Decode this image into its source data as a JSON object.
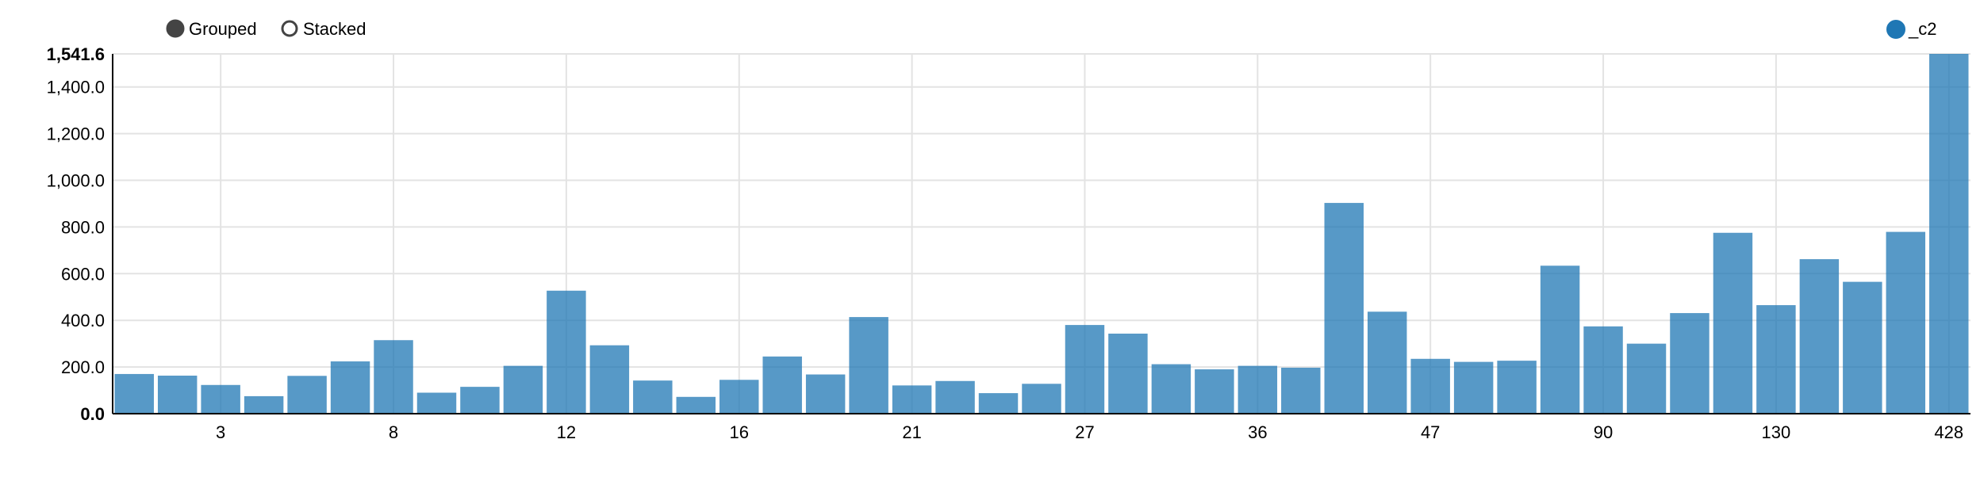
{
  "controls": {
    "grouped_label": "Grouped",
    "stacked_label": "Stacked",
    "selected": "Grouped"
  },
  "chart_data": {
    "type": "bar",
    "legend": {
      "entries": [
        "_c2"
      ],
      "position": "top-right"
    },
    "series": [
      {
        "name": "_c2",
        "color": "#1f77b4",
        "values": [
          170,
          163,
          123,
          75,
          162,
          224,
          315,
          90,
          115,
          205,
          527,
          293,
          142,
          72,
          145,
          245,
          168,
          414,
          121,
          140,
          88,
          128,
          380,
          343,
          212,
          190,
          205,
          197,
          903,
          437,
          235,
          222,
          227,
          634,
          374,
          300,
          431,
          775,
          465,
          662,
          565,
          779,
          1541.6
        ]
      }
    ],
    "x_tick_labels": [
      {
        "index": 2,
        "label": "3"
      },
      {
        "index": 6,
        "label": "8"
      },
      {
        "index": 10,
        "label": "12"
      },
      {
        "index": 14,
        "label": "16"
      },
      {
        "index": 18,
        "label": "21"
      },
      {
        "index": 22,
        "label": "27"
      },
      {
        "index": 26,
        "label": "36"
      },
      {
        "index": 30,
        "label": "47"
      },
      {
        "index": 34,
        "label": "90"
      },
      {
        "index": 38,
        "label": "130"
      },
      {
        "index": 42,
        "label": "428"
      }
    ],
    "y_ticks": [
      {
        "value": 0,
        "label": "0.0"
      },
      {
        "value": 200,
        "label": "200.0"
      },
      {
        "value": 400,
        "label": "400.0"
      },
      {
        "value": 600,
        "label": "600.0"
      },
      {
        "value": 800,
        "label": "800.0"
      },
      {
        "value": 1000,
        "label": "1,000.0"
      },
      {
        "value": 1200,
        "label": "1,200.0"
      },
      {
        "value": 1400,
        "label": "1,400.0"
      },
      {
        "value": 1541.6,
        "label": "1,541.6"
      }
    ],
    "ylim": [
      0,
      1541.6
    ],
    "grid": true
  }
}
